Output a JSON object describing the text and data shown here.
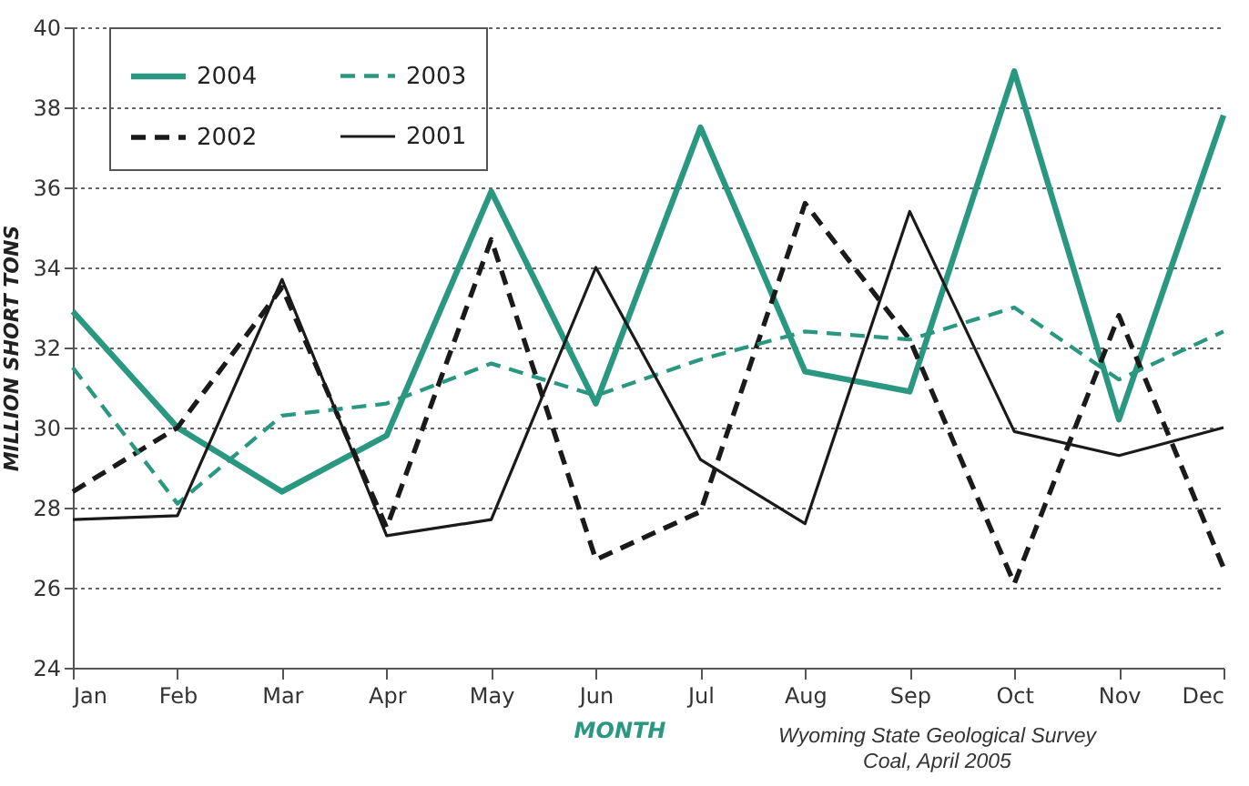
{
  "chart_data": {
    "type": "line",
    "xlabel": "MONTH",
    "ylabel": "MILLION SHORT TONS",
    "categories": [
      "Jan",
      "Feb",
      "Mar",
      "Apr",
      "May",
      "Jun",
      "Jul",
      "Aug",
      "Sep",
      "Oct",
      "Nov",
      "Dec"
    ],
    "series": [
      {
        "name": "2004",
        "color": "#2a9880",
        "line_style": "solid",
        "values": [
          32.9,
          30.0,
          28.4,
          29.8,
          35.9,
          30.6,
          37.5,
          31.4,
          30.9,
          38.9,
          30.2,
          37.8
        ]
      },
      {
        "name": "2002",
        "color": "#1a1a1a",
        "line_style": "dashed",
        "values": [
          28.4,
          30.0,
          33.5,
          27.5,
          34.7,
          26.7,
          27.9,
          35.6,
          32.2,
          26.1,
          32.8,
          26.5
        ]
      },
      {
        "name": "2003",
        "color": "#2a9880",
        "line_style": "dashed",
        "values": [
          31.5,
          28.1,
          30.3,
          30.6,
          31.6,
          30.8,
          31.7,
          32.4,
          32.2,
          33.0,
          31.2,
          32.4
        ]
      },
      {
        "name": "2001",
        "color": "#1a1a1a",
        "line_style": "solid",
        "values": [
          27.7,
          27.8,
          33.7,
          27.3,
          27.7,
          34.0,
          29.2,
          27.6,
          35.4,
          29.9,
          29.3,
          30.0
        ]
      }
    ],
    "ylim": [
      24,
      40
    ],
    "yticks": [
      24,
      26,
      28,
      30,
      32,
      34,
      36,
      38,
      40
    ],
    "grid": "y",
    "legend": "top left",
    "marker": "none",
    "annotations": [
      "Wyoming State Geological Survey",
      "Coal, April 2005"
    ]
  }
}
